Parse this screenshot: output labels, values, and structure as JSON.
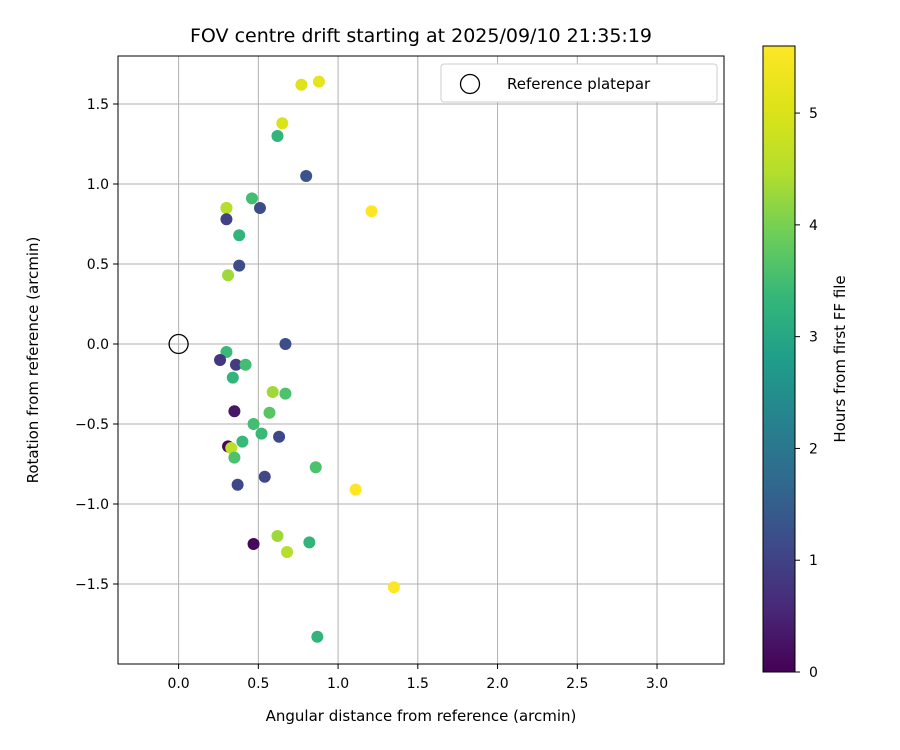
{
  "chart_data": {
    "type": "scatter",
    "title": "FOV centre drift starting at 2025/09/10 21:35:19",
    "xlabel": "Angular distance from reference (arcmin)",
    "ylabel": "Rotation from reference (arcmin)",
    "xlim": [
      -0.38,
      3.42
    ],
    "ylim": [
      -2.0,
      1.8
    ],
    "xticks": [
      0.0,
      0.5,
      1.0,
      1.5,
      2.0,
      2.5,
      3.0
    ],
    "xtick_labels": [
      "0.0",
      "0.5",
      "1.0",
      "1.5",
      "2.0",
      "2.5",
      "3.0"
    ],
    "yticks": [
      -1.5,
      -1.0,
      -0.5,
      0.0,
      0.5,
      1.0,
      1.5
    ],
    "ytick_labels": [
      "−1.5",
      "−1.0",
      "−0.5",
      "0.0",
      "0.5",
      "1.0",
      "1.5"
    ],
    "grid": true,
    "legend": {
      "position": "top-right",
      "entries": [
        "Reference platepar"
      ]
    },
    "reference_point": {
      "x": 0.0,
      "y": 0.0,
      "label": "Reference platepar"
    },
    "colorbar": {
      "label": "Hours from first FF file",
      "range": [
        0,
        5.6
      ],
      "ticks": [
        0,
        1,
        2,
        3,
        4,
        5
      ],
      "tick_labels": [
        "0",
        "1",
        "2",
        "3",
        "4",
        "5"
      ],
      "colormap": "viridis"
    },
    "points": [
      {
        "x": 0.77,
        "y": 1.62,
        "hours": 5.1
      },
      {
        "x": 0.88,
        "y": 1.64,
        "hours": 5.2
      },
      {
        "x": 0.65,
        "y": 1.38,
        "hours": 5.0
      },
      {
        "x": 0.62,
        "y": 1.3,
        "hours": 3.3
      },
      {
        "x": 0.8,
        "y": 1.05,
        "hours": 1.3
      },
      {
        "x": 0.46,
        "y": 0.91,
        "hours": 3.5
      },
      {
        "x": 0.3,
        "y": 0.85,
        "hours": 4.2
      },
      {
        "x": 0.3,
        "y": 0.85,
        "hours": 4.5
      },
      {
        "x": 0.51,
        "y": 0.85,
        "hours": 1.2
      },
      {
        "x": 0.3,
        "y": 0.78,
        "hours": 1.0
      },
      {
        "x": 0.38,
        "y": 0.68,
        "hours": 3.3
      },
      {
        "x": 1.21,
        "y": 0.83,
        "hours": 5.6
      },
      {
        "x": 0.38,
        "y": 0.49,
        "hours": 1.2
      },
      {
        "x": 0.31,
        "y": 0.43,
        "hours": 4.3
      },
      {
        "x": 0.67,
        "y": 0.0,
        "hours": 1.2
      },
      {
        "x": 0.3,
        "y": -0.05,
        "hours": 3.4
      },
      {
        "x": 0.26,
        "y": -0.1,
        "hours": 0.8
      },
      {
        "x": 0.36,
        "y": -0.13,
        "hours": 0.9
      },
      {
        "x": 0.42,
        "y": -0.13,
        "hours": 3.5
      },
      {
        "x": 0.34,
        "y": -0.21,
        "hours": 3.3
      },
      {
        "x": 0.59,
        "y": -0.3,
        "hours": 4.3
      },
      {
        "x": 0.67,
        "y": -0.31,
        "hours": 3.6
      },
      {
        "x": 0.35,
        "y": -0.42,
        "hours": 0.3
      },
      {
        "x": 0.57,
        "y": -0.43,
        "hours": 3.7
      },
      {
        "x": 0.47,
        "y": -0.5,
        "hours": 3.5
      },
      {
        "x": 0.52,
        "y": -0.56,
        "hours": 3.4
      },
      {
        "x": 0.63,
        "y": -0.58,
        "hours": 1.1
      },
      {
        "x": 0.4,
        "y": -0.61,
        "hours": 3.4
      },
      {
        "x": 0.31,
        "y": -0.64,
        "hours": 0.1
      },
      {
        "x": 0.33,
        "y": -0.65,
        "hours": 4.6
      },
      {
        "x": 0.35,
        "y": -0.71,
        "hours": 3.6
      },
      {
        "x": 0.86,
        "y": -0.77,
        "hours": 3.6
      },
      {
        "x": 0.54,
        "y": -0.83,
        "hours": 1.1
      },
      {
        "x": 0.37,
        "y": -0.88,
        "hours": 1.1
      },
      {
        "x": 1.11,
        "y": -0.91,
        "hours": 5.6
      },
      {
        "x": 0.62,
        "y": -1.2,
        "hours": 4.3
      },
      {
        "x": 0.47,
        "y": -1.25,
        "hours": 0.1
      },
      {
        "x": 0.82,
        "y": -1.24,
        "hours": 3.3
      },
      {
        "x": 0.68,
        "y": -1.3,
        "hours": 4.5
      },
      {
        "x": 1.35,
        "y": -1.52,
        "hours": 5.6
      },
      {
        "x": 0.87,
        "y": -1.83,
        "hours": 3.3
      }
    ]
  }
}
